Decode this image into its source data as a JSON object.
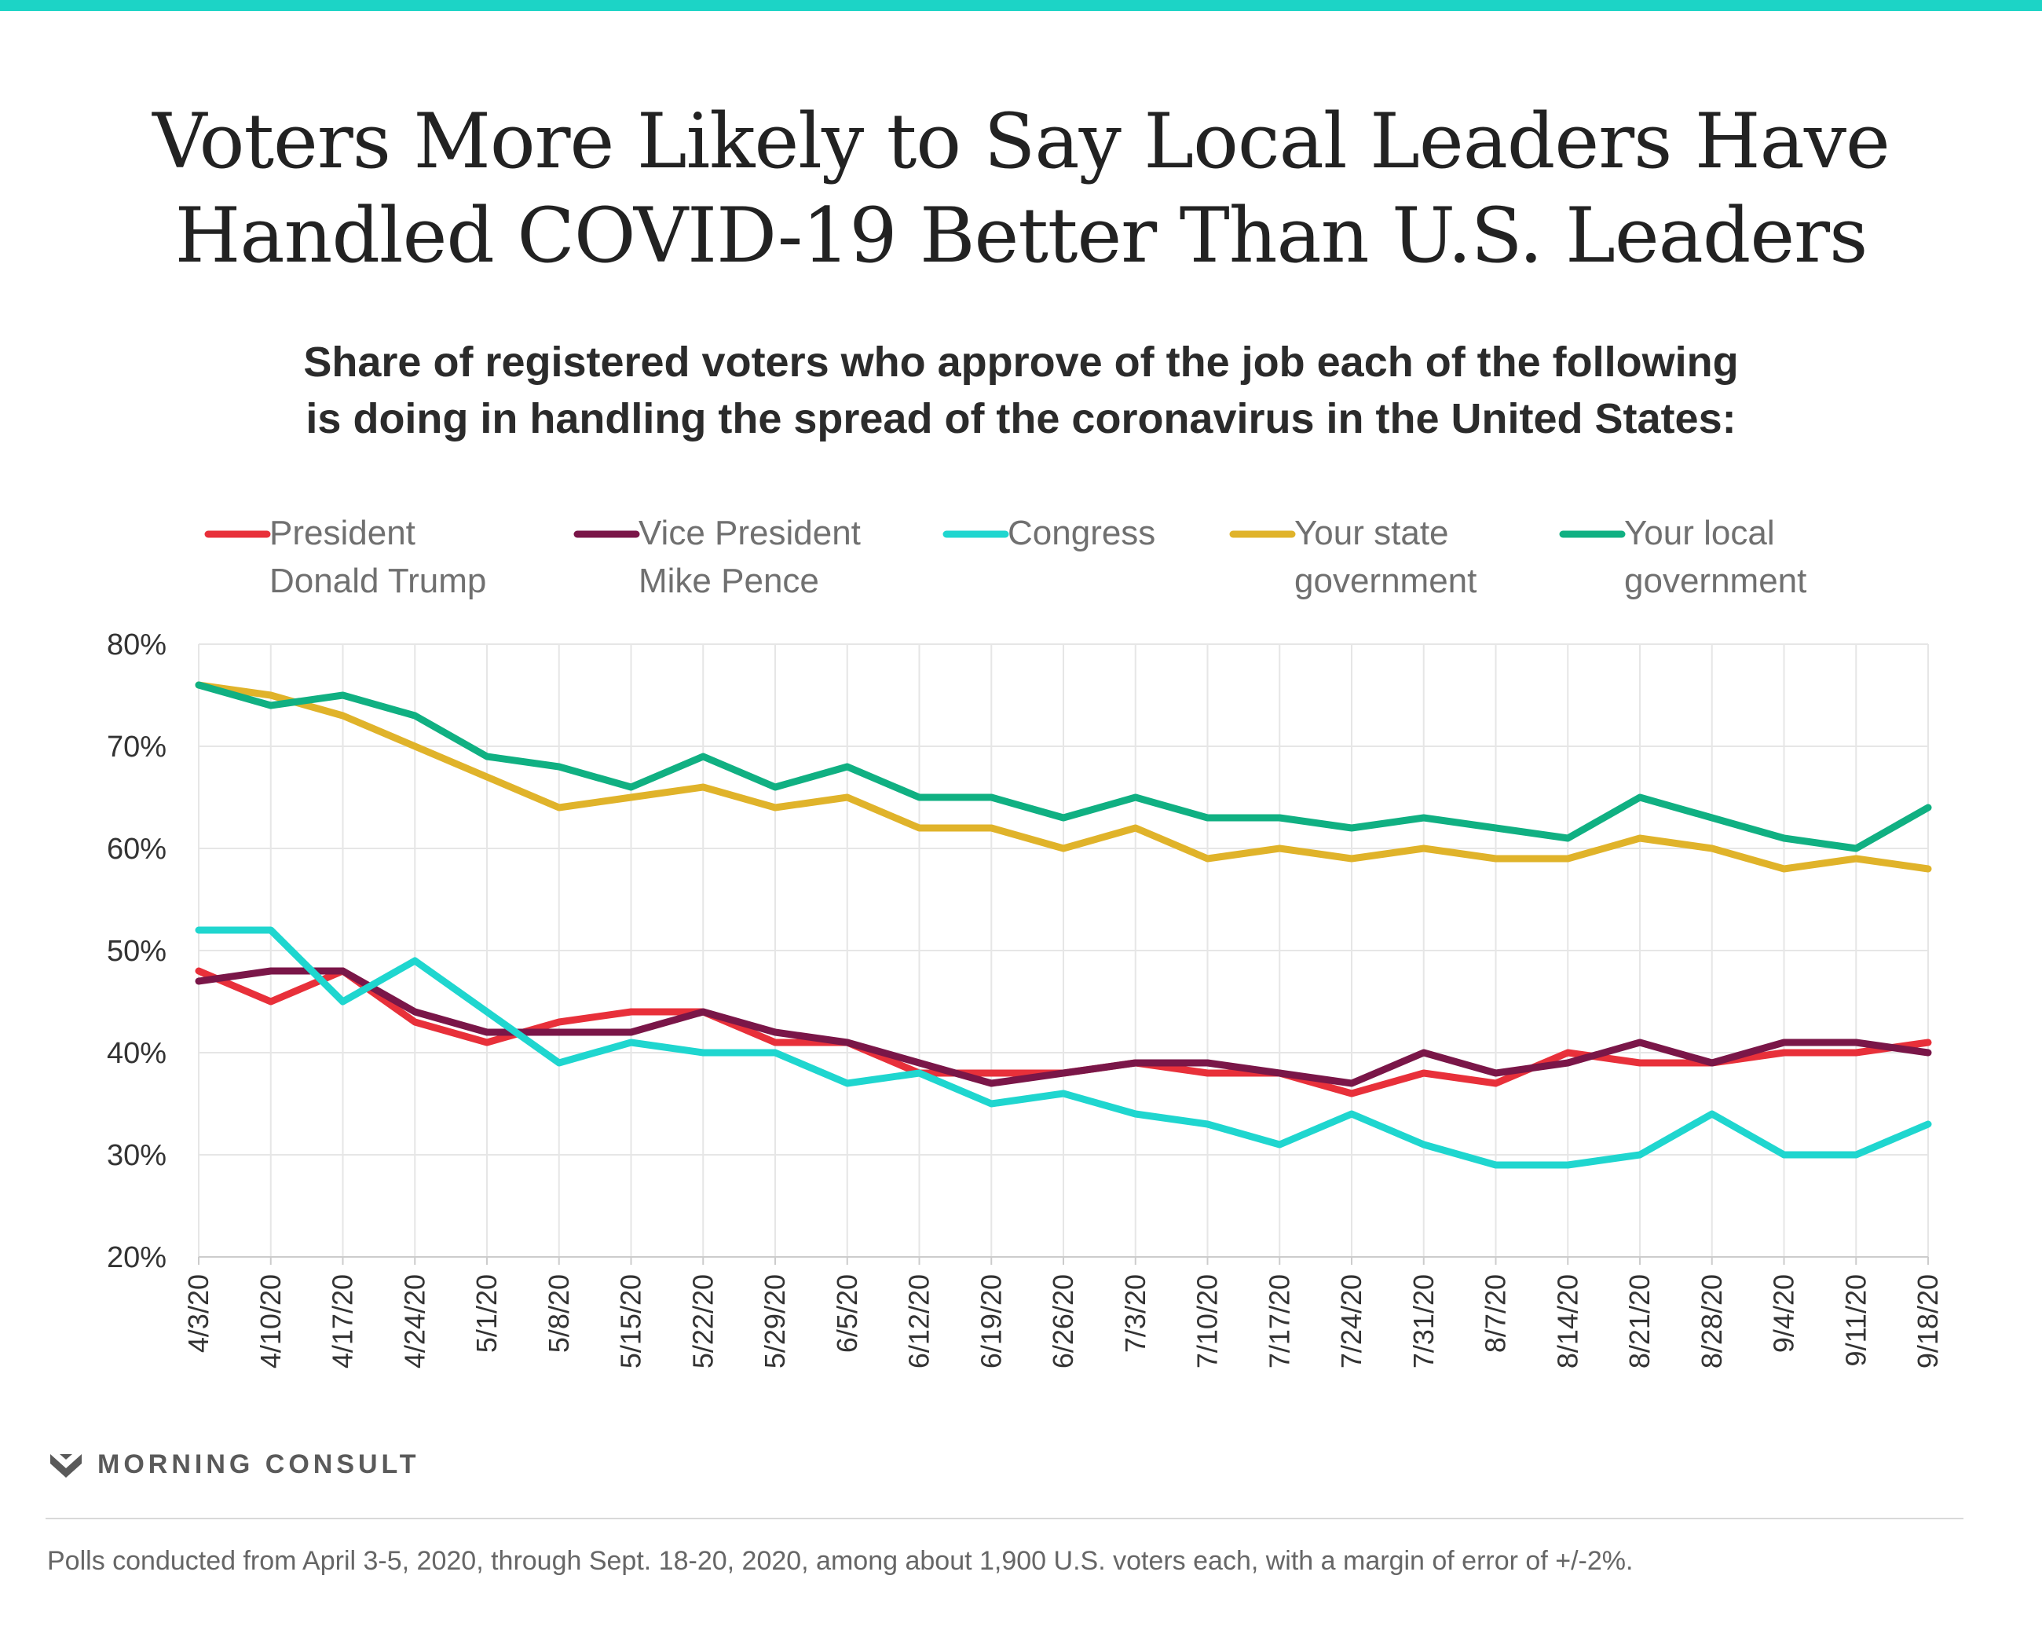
{
  "header": {
    "title_line1": "Voters More Likely to Say Local Leaders Have",
    "title_line2": "Handled COVID-19 Better Than U.S. Leaders",
    "subtitle_line1": "Share of registered voters who approve of the job each of the following",
    "subtitle_line2": "is doing in handling the spread of the coronavirus in the United States:"
  },
  "brand": {
    "name": "MORNING CONSULT",
    "logo_icon": "morning-consult-m-icon"
  },
  "footnote": "Polls conducted from April 3-5, 2020, through Sept. 18-20, 2020, among about 1,900 U.S. voters each, with a margin of error of +/-2%.",
  "colors": {
    "accent_bar": "#1cd4c6"
  },
  "chart_data": {
    "type": "line",
    "categories": [
      "4/3/20",
      "4/10/20",
      "4/17/20",
      "4/24/20",
      "5/1/20",
      "5/8/20",
      "5/15/20",
      "5/22/20",
      "5/29/20",
      "6/5/20",
      "6/12/20",
      "6/19/20",
      "6/26/20",
      "7/3/20",
      "7/10/20",
      "7/17/20",
      "7/24/20",
      "7/31/20",
      "8/7/20",
      "8/14/20",
      "8/21/20",
      "8/28/20",
      "9/4/20",
      "9/11/20",
      "9/18/20"
    ],
    "ylim": [
      20,
      80
    ],
    "yticks": [
      20,
      30,
      40,
      50,
      60,
      70,
      80
    ],
    "ytick_labels": [
      "20%",
      "30%",
      "40%",
      "50%",
      "60%",
      "70%",
      "80%"
    ],
    "grid": true,
    "legend_position": "top",
    "series": [
      {
        "name": "President Donald Trump",
        "legend_lines": [
          "President",
          "Donald Trump"
        ],
        "color": "#e8303a",
        "values": [
          48,
          45,
          48,
          43,
          41,
          43,
          44,
          44,
          41,
          41,
          38,
          38,
          38,
          39,
          38,
          38,
          36,
          38,
          37,
          40,
          39,
          39,
          40,
          40,
          41
        ]
      },
      {
        "name": "Vice President Mike Pence",
        "legend_lines": [
          "Vice President",
          "Mike Pence"
        ],
        "color": "#7a1648",
        "values": [
          47,
          48,
          48,
          44,
          42,
          42,
          42,
          44,
          42,
          41,
          39,
          37,
          38,
          39,
          39,
          38,
          37,
          40,
          38,
          39,
          41,
          39,
          41,
          41,
          40
        ]
      },
      {
        "name": "Congress",
        "legend_lines": [
          "Congress"
        ],
        "color": "#1fd6cf",
        "values": [
          52,
          52,
          45,
          49,
          44,
          39,
          41,
          40,
          40,
          37,
          38,
          35,
          36,
          34,
          33,
          31,
          34,
          31,
          29,
          29,
          30,
          34,
          30,
          30,
          33
        ]
      },
      {
        "name": "Your state government",
        "legend_lines": [
          "Your state",
          "government"
        ],
        "color": "#e0b32a",
        "values": [
          76,
          75,
          73,
          70,
          67,
          64,
          65,
          66,
          64,
          65,
          62,
          62,
          60,
          62,
          59,
          60,
          59,
          60,
          59,
          59,
          61,
          60,
          58,
          59,
          58
        ]
      },
      {
        "name": "Your local government",
        "legend_lines": [
          "Your local",
          "government"
        ],
        "color": "#10b082",
        "values": [
          76,
          74,
          75,
          73,
          69,
          68,
          66,
          69,
          66,
          68,
          65,
          65,
          63,
          65,
          63,
          63,
          62,
          63,
          62,
          61,
          65,
          63,
          61,
          60,
          64
        ]
      }
    ]
  }
}
